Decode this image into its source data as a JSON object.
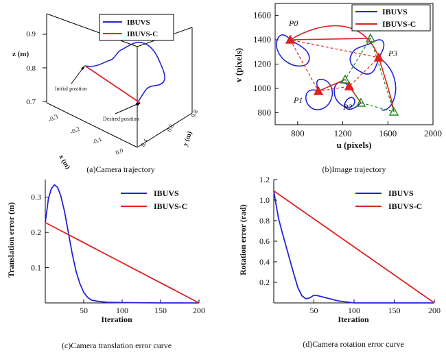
{
  "colors": {
    "ibuvs": "#2323d8",
    "ibuvsc": "#e02020",
    "target": "#1a8a1a",
    "axis": "#000000"
  },
  "chart_data": [
    {
      "id": "a",
      "type": "line",
      "caption": "(a)Camera trajectory",
      "projection": "3d",
      "zlabel": "z (m)",
      "xlabel": "x (m)",
      "ylabel": "y (m)",
      "z_ticks": [
        "0.7",
        "0.8",
        "0.9"
      ],
      "x_ticks": [
        "-0.3",
        "-0.2",
        "-0.1",
        "0.0"
      ],
      "y_ticks": [
        "0.4",
        "0.6",
        "0.8"
      ],
      "legend": [
        "IBUVS",
        "IBUVS-C"
      ],
      "legend_position": "top-right",
      "annotations": [
        "Initial position",
        "Desired position"
      ],
      "series": [
        {
          "name": "IBUVS",
          "kind": "curve"
        },
        {
          "name": "IBUVS-C",
          "kind": "straight"
        }
      ]
    },
    {
      "id": "b",
      "type": "line",
      "caption": "(b)Image trajectory",
      "xlabel": "u (pixels)",
      "ylabel": "v (pixels)",
      "xlim": [
        600,
        2000
      ],
      "ylim": [
        700,
        1700
      ],
      "x_ticks": [
        800,
        1200,
        1600,
        2000
      ],
      "y_ticks": [
        800,
        1000,
        1200,
        1400,
        1600
      ],
      "legend": [
        "IBUVS",
        "IBUVS-C"
      ],
      "legend_position": "top-right",
      "point_labels": [
        "P0",
        "P1",
        "P2",
        "P3"
      ],
      "start_points": [
        [
          740,
          1380
        ],
        [
          960,
          950
        ],
        [
          1250,
          1000
        ],
        [
          1510,
          1240
        ]
      ],
      "end_points": [
        [
          1420,
          1390
        ],
        [
          1180,
          1060
        ],
        [
          1300,
          890
        ],
        [
          1620,
          790
        ]
      ],
      "series": [
        {
          "name": "IBUVS",
          "kind": "curve"
        },
        {
          "name": "IBUVS-C",
          "kind": "straight"
        }
      ]
    },
    {
      "id": "c",
      "type": "line",
      "caption": "(c)Camera translation error curve",
      "xlabel": "Iteration",
      "ylabel": "Translation error (m)",
      "xlim": [
        0,
        200
      ],
      "ylim": [
        0,
        0.35
      ],
      "x_ticks": [
        50,
        100,
        150,
        200
      ],
      "y_ticks": [
        0.1,
        0.2,
        0.3
      ],
      "legend": [
        "IBUVS",
        "IBUVS-C"
      ],
      "legend_position": "top-right",
      "series": [
        {
          "name": "IBUVS",
          "x": [
            0,
            4,
            8,
            12,
            16,
            20,
            25,
            30,
            35,
            40,
            45,
            50,
            55,
            60,
            70,
            80,
            100,
            150,
            200
          ],
          "y": [
            0.228,
            0.295,
            0.325,
            0.335,
            0.328,
            0.305,
            0.26,
            0.2,
            0.14,
            0.09,
            0.055,
            0.03,
            0.016,
            0.008,
            0.004,
            0.002,
            0.001,
            0.0,
            0.0
          ]
        },
        {
          "name": "IBUVS-C",
          "x": [
            0,
            200
          ],
          "y": [
            0.228,
            0.0
          ]
        }
      ]
    },
    {
      "id": "d",
      "type": "line",
      "caption": "(d)Camera rotation error curve",
      "xlabel": "Iteration",
      "ylabel": "Rotation error (rad)",
      "xlim": [
        0,
        200
      ],
      "ylim": [
        0,
        1.2
      ],
      "x_ticks": [
        50,
        100,
        150,
        200
      ],
      "y_ticks": [
        "0.2",
        "0.4",
        "0.6",
        "0.8",
        "1.0",
        "1.2"
      ],
      "legend": [
        "IBUVS",
        "IBUVS-C"
      ],
      "legend_position": "top-right",
      "series": [
        {
          "name": "IBUVS",
          "x": [
            0,
            3,
            6,
            10,
            15,
            20,
            25,
            30,
            35,
            40,
            45,
            50,
            55,
            60,
            70,
            80,
            90,
            100,
            150,
            200
          ],
          "y": [
            1.09,
            0.95,
            0.82,
            0.7,
            0.56,
            0.42,
            0.28,
            0.15,
            0.07,
            0.04,
            0.05,
            0.075,
            0.07,
            0.06,
            0.04,
            0.02,
            0.01,
            0.0,
            0.0,
            0.0
          ]
        },
        {
          "name": "IBUVS-C",
          "x": [
            0,
            200
          ],
          "y": [
            1.09,
            0.0
          ]
        }
      ]
    }
  ]
}
